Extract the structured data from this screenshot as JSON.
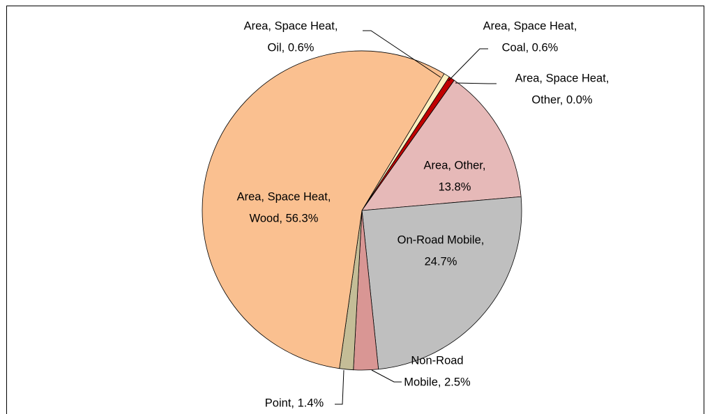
{
  "chart_data": {
    "type": "pie",
    "values": [
      0.6,
      0.6,
      0.0,
      13.8,
      24.7,
      2.5,
      1.4,
      56.3
    ],
    "value_labels": [
      [
        "Area, Space Heat,",
        "Oil, 0.6%"
      ],
      [
        "Area, Space Heat,",
        "Coal, 0.6%"
      ],
      [
        "Area, Space Heat,",
        "Other, 0.0%"
      ],
      [
        "Area, Other,",
        "13.8%"
      ],
      [
        "On-Road Mobile,",
        "24.7%"
      ],
      [
        "Non-Road",
        "Mobile, 2.5%"
      ],
      [
        "Point, 1.4%"
      ],
      [
        "Area, Space Heat,",
        "Wood, 56.3%"
      ]
    ],
    "colors": [
      "#fdf0c0",
      "#c00000",
      "#8b0000",
      "#e6b9b8",
      "#bfbfbf",
      "#d99694",
      "#c4bd97",
      "#fac090"
    ]
  }
}
